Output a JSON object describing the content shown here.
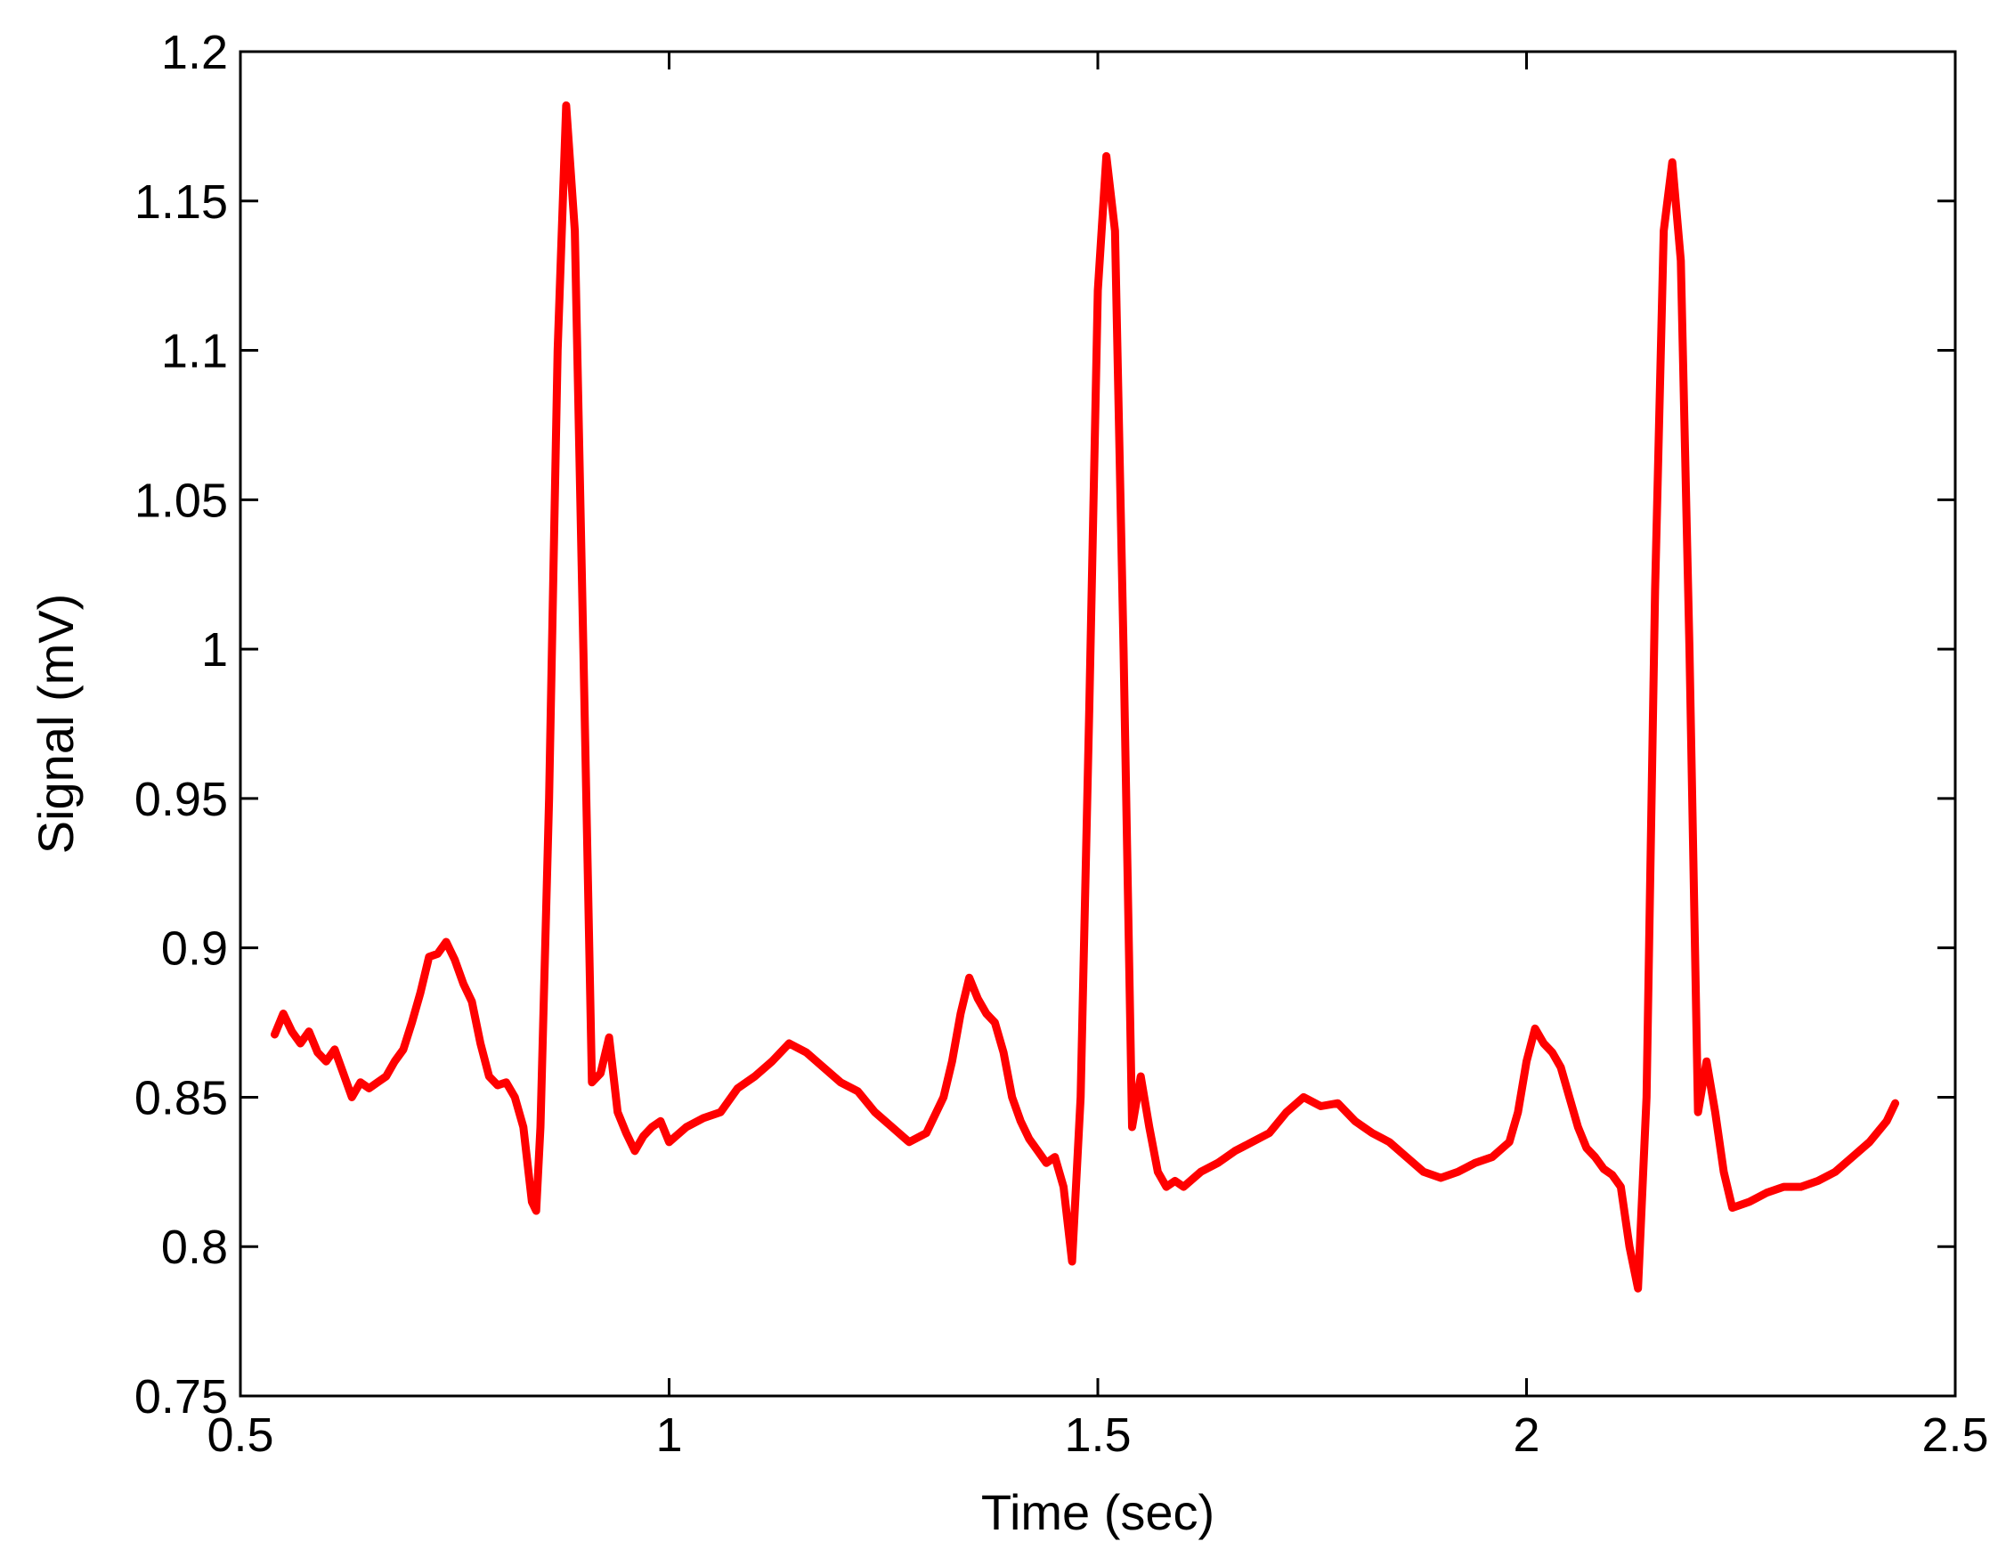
{
  "chart_data": {
    "type": "line",
    "title": "",
    "xlabel": "Time (sec)",
    "ylabel": "Signal (mV)",
    "xlim": [
      0.5,
      2.5
    ],
    "ylim": [
      0.75,
      1.2
    ],
    "xticks": [
      {
        "value": 0.5,
        "label": "0.5"
      },
      {
        "value": 1,
        "label": "1"
      },
      {
        "value": 1.5,
        "label": "1.5"
      },
      {
        "value": 2,
        "label": "2"
      },
      {
        "value": 2.5,
        "label": "2.5"
      }
    ],
    "yticks": [
      {
        "value": 0.75,
        "label": "0.75"
      },
      {
        "value": 0.8,
        "label": "0.8"
      },
      {
        "value": 0.85,
        "label": "0.85"
      },
      {
        "value": 0.9,
        "label": "0.9"
      },
      {
        "value": 0.95,
        "label": "0.95"
      },
      {
        "value": 1,
        "label": "1"
      },
      {
        "value": 1.05,
        "label": "1.05"
      },
      {
        "value": 1.1,
        "label": "1.1"
      },
      {
        "value": 1.15,
        "label": "1.15"
      },
      {
        "value": 1.2,
        "label": "1.2"
      }
    ],
    "grid": false,
    "legend": "none",
    "colors": {
      "line": "#ff0000",
      "axes": "#000000",
      "background": "#ffffff"
    },
    "series": [
      {
        "name": "",
        "x": [
          0.54,
          0.55,
          0.56,
          0.57,
          0.58,
          0.59,
          0.6,
          0.61,
          0.62,
          0.63,
          0.64,
          0.65,
          0.66,
          0.67,
          0.68,
          0.69,
          0.7,
          0.71,
          0.72,
          0.73,
          0.74,
          0.75,
          0.76,
          0.77,
          0.78,
          0.79,
          0.8,
          0.81,
          0.82,
          0.83,
          0.84,
          0.845,
          0.85,
          0.86,
          0.87,
          0.88,
          0.89,
          0.9,
          0.91,
          0.92,
          0.93,
          0.94,
          0.95,
          0.96,
          0.97,
          0.98,
          0.99,
          1.0,
          1.02,
          1.04,
          1.06,
          1.08,
          1.1,
          1.12,
          1.14,
          1.16,
          1.18,
          1.2,
          1.22,
          1.24,
          1.26,
          1.28,
          1.3,
          1.32,
          1.33,
          1.34,
          1.35,
          1.36,
          1.37,
          1.38,
          1.39,
          1.4,
          1.41,
          1.42,
          1.43,
          1.44,
          1.45,
          1.46,
          1.47,
          1.48,
          1.49,
          1.5,
          1.51,
          1.52,
          1.53,
          1.54,
          1.55,
          1.56,
          1.57,
          1.58,
          1.59,
          1.6,
          1.62,
          1.64,
          1.66,
          1.68,
          1.7,
          1.72,
          1.74,
          1.76,
          1.78,
          1.8,
          1.82,
          1.84,
          1.86,
          1.88,
          1.9,
          1.92,
          1.94,
          1.96,
          1.98,
          1.99,
          2.0,
          2.01,
          2.02,
          2.03,
          2.04,
          2.05,
          2.06,
          2.07,
          2.08,
          2.09,
          2.1,
          2.11,
          2.12,
          2.13,
          2.14,
          2.15,
          2.16,
          2.17,
          2.18,
          2.19,
          2.2,
          2.21,
          2.22,
          2.23,
          2.24,
          2.26,
          2.28,
          2.3,
          2.32,
          2.34,
          2.36,
          2.38,
          2.4,
          2.42,
          2.43
        ],
        "values": [
          0.871,
          0.878,
          0.872,
          0.868,
          0.872,
          0.865,
          0.862,
          0.866,
          0.858,
          0.85,
          0.855,
          0.853,
          0.855,
          0.857,
          0.862,
          0.866,
          0.875,
          0.885,
          0.897,
          0.898,
          0.902,
          0.896,
          0.888,
          0.882,
          0.868,
          0.857,
          0.854,
          0.855,
          0.85,
          0.84,
          0.815,
          0.812,
          0.84,
          0.95,
          1.1,
          1.182,
          1.14,
          1.0,
          0.855,
          0.858,
          0.87,
          0.845,
          0.838,
          0.832,
          0.837,
          0.84,
          0.842,
          0.835,
          0.84,
          0.843,
          0.845,
          0.853,
          0.857,
          0.862,
          0.868,
          0.865,
          0.86,
          0.855,
          0.852,
          0.845,
          0.84,
          0.835,
          0.838,
          0.85,
          0.862,
          0.878,
          0.89,
          0.883,
          0.878,
          0.875,
          0.865,
          0.85,
          0.842,
          0.836,
          0.832,
          0.828,
          0.83,
          0.82,
          0.795,
          0.85,
          0.98,
          1.12,
          1.165,
          1.14,
          1.0,
          0.84,
          0.857,
          0.84,
          0.825,
          0.82,
          0.822,
          0.82,
          0.825,
          0.828,
          0.832,
          0.835,
          0.838,
          0.845,
          0.85,
          0.847,
          0.848,
          0.842,
          0.838,
          0.835,
          0.83,
          0.825,
          0.823,
          0.825,
          0.828,
          0.83,
          0.835,
          0.845,
          0.862,
          0.873,
          0.868,
          0.865,
          0.86,
          0.85,
          0.84,
          0.833,
          0.83,
          0.826,
          0.824,
          0.82,
          0.8,
          0.786,
          0.85,
          1.02,
          1.14,
          1.163,
          1.13,
          1.0,
          0.845,
          0.862,
          0.845,
          0.825,
          0.813,
          0.815,
          0.818,
          0.82,
          0.82,
          0.822,
          0.825,
          0.83,
          0.835,
          0.842,
          0.848
        ]
      }
    ]
  }
}
